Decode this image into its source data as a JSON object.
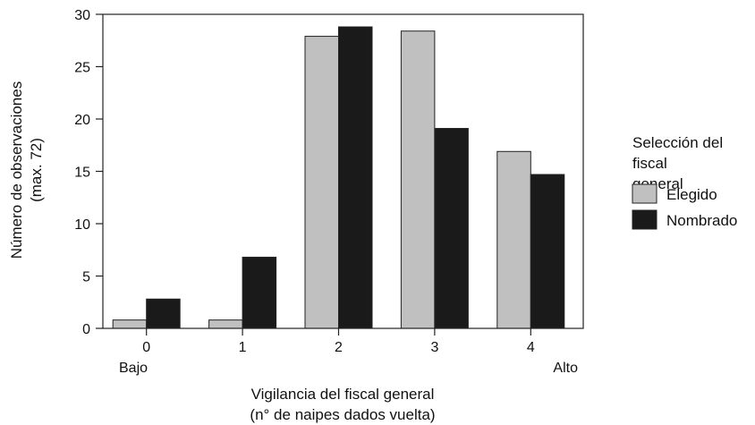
{
  "chart_data": {
    "type": "bar",
    "categories": [
      "0",
      "1",
      "2",
      "3",
      "4"
    ],
    "series": [
      {
        "name": "Elegido",
        "values": [
          0.8,
          0.8,
          27.9,
          28.4,
          16.9
        ],
        "color": "#c0c0c0"
      },
      {
        "name": "Nombrado",
        "values": [
          2.8,
          6.8,
          28.8,
          19.1,
          14.7
        ],
        "color": "#1a1a1a"
      }
    ],
    "ylim": [
      0,
      30
    ],
    "yticks": [
      0,
      5,
      10,
      15,
      20,
      25,
      30
    ],
    "ylabel_line1": "Número de observaciones",
    "ylabel_line2": "(max. 72)",
    "xlabel_line1": "Vigilancia del fiscal general",
    "xlabel_line2": "(n° de naipes dados vuelta)",
    "x_low_label": "Bajo",
    "x_high_label": "Alto",
    "legend": {
      "title_lines": [
        "Selección del",
        "fiscal",
        "general"
      ],
      "placement": "right"
    },
    "grid": false
  }
}
